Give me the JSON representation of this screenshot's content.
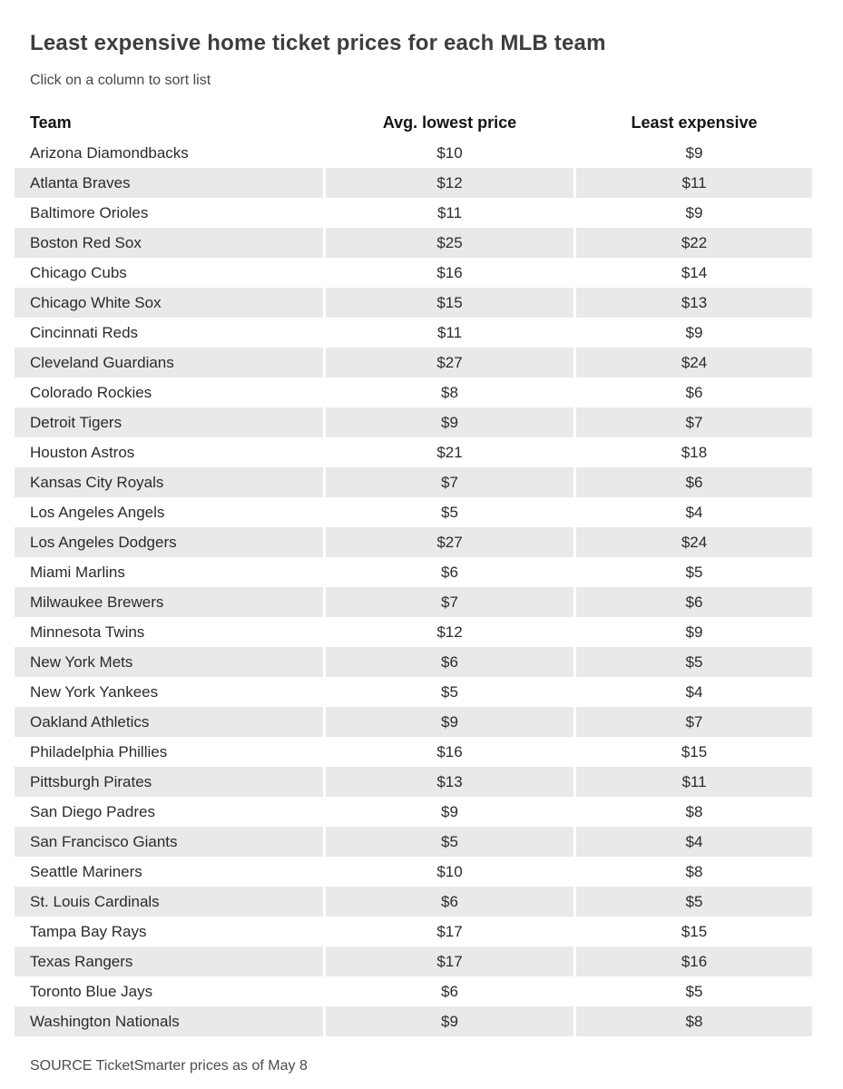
{
  "page": {
    "title": "Least expensive home ticket prices for each MLB team",
    "subtitle": "Click on  a column to sort list",
    "source": "SOURCE TicketSmarter prices as of May 8"
  },
  "colors": {
    "row_alt_background": "#e9e9e9",
    "title_text": "#3d3d3d",
    "body_text": "#2b2b2b",
    "header_text": "#141414",
    "background": "#ffffff"
  },
  "chart_data": {
    "type": "table",
    "title": "Least expensive home ticket prices for each MLB team",
    "columns": [
      {
        "key": "team",
        "label": "Team",
        "align": "left",
        "sortable": true
      },
      {
        "key": "avg_lowest_price",
        "label": "Avg. lowest price",
        "align": "center",
        "sortable": true
      },
      {
        "key": "least_expensive",
        "label": "Least expensive",
        "align": "center",
        "sortable": true
      }
    ],
    "rows": [
      {
        "team": "Arizona Diamondbacks",
        "avg_lowest_price": "$10",
        "least_expensive": "$9"
      },
      {
        "team": "Atlanta Braves",
        "avg_lowest_price": "$12",
        "least_expensive": "$11"
      },
      {
        "team": "Baltimore Orioles",
        "avg_lowest_price": "$11",
        "least_expensive": "$9"
      },
      {
        "team": "Boston Red Sox",
        "avg_lowest_price": "$25",
        "least_expensive": "$22"
      },
      {
        "team": "Chicago Cubs",
        "avg_lowest_price": "$16",
        "least_expensive": "$14"
      },
      {
        "team": "Chicago White Sox",
        "avg_lowest_price": "$15",
        "least_expensive": "$13"
      },
      {
        "team": "Cincinnati Reds",
        "avg_lowest_price": "$11",
        "least_expensive": "$9"
      },
      {
        "team": "Cleveland Guardians",
        "avg_lowest_price": "$27",
        "least_expensive": "$24"
      },
      {
        "team": "Colorado Rockies",
        "avg_lowest_price": "$8",
        "least_expensive": "$6"
      },
      {
        "team": "Detroit Tigers",
        "avg_lowest_price": "$9",
        "least_expensive": "$7"
      },
      {
        "team": "Houston Astros",
        "avg_lowest_price": "$21",
        "least_expensive": "$18"
      },
      {
        "team": "Kansas City Royals",
        "avg_lowest_price": "$7",
        "least_expensive": "$6"
      },
      {
        "team": "Los Angeles Angels",
        "avg_lowest_price": "$5",
        "least_expensive": "$4"
      },
      {
        "team": "Los Angeles Dodgers",
        "avg_lowest_price": "$27",
        "least_expensive": "$24"
      },
      {
        "team": "Miami Marlins",
        "avg_lowest_price": "$6",
        "least_expensive": "$5"
      },
      {
        "team": "Milwaukee Brewers",
        "avg_lowest_price": "$7",
        "least_expensive": "$6"
      },
      {
        "team": "Minnesota Twins",
        "avg_lowest_price": "$12",
        "least_expensive": "$9"
      },
      {
        "team": "New York Mets",
        "avg_lowest_price": "$6",
        "least_expensive": "$5"
      },
      {
        "team": "New York Yankees",
        "avg_lowest_price": "$5",
        "least_expensive": "$4"
      },
      {
        "team": "Oakland Athletics",
        "avg_lowest_price": "$9",
        "least_expensive": "$7"
      },
      {
        "team": "Philadelphia Phillies",
        "avg_lowest_price": "$16",
        "least_expensive": "$15"
      },
      {
        "team": "Pittsburgh Pirates",
        "avg_lowest_price": "$13",
        "least_expensive": "$11"
      },
      {
        "team": "San Diego Padres",
        "avg_lowest_price": "$9",
        "least_expensive": "$8"
      },
      {
        "team": "San Francisco Giants",
        "avg_lowest_price": "$5",
        "least_expensive": "$4"
      },
      {
        "team": "Seattle Mariners",
        "avg_lowest_price": "$10",
        "least_expensive": "$8"
      },
      {
        "team": "St. Louis Cardinals",
        "avg_lowest_price": "$6",
        "least_expensive": "$5"
      },
      {
        "team": "Tampa Bay Rays",
        "avg_lowest_price": "$17",
        "least_expensive": "$15"
      },
      {
        "team": "Texas Rangers",
        "avg_lowest_price": "$17",
        "least_expensive": "$16"
      },
      {
        "team": "Toronto Blue Jays",
        "avg_lowest_price": "$6",
        "least_expensive": "$5"
      },
      {
        "team": "Washington Nationals",
        "avg_lowest_price": "$9",
        "least_expensive": "$8"
      }
    ]
  }
}
